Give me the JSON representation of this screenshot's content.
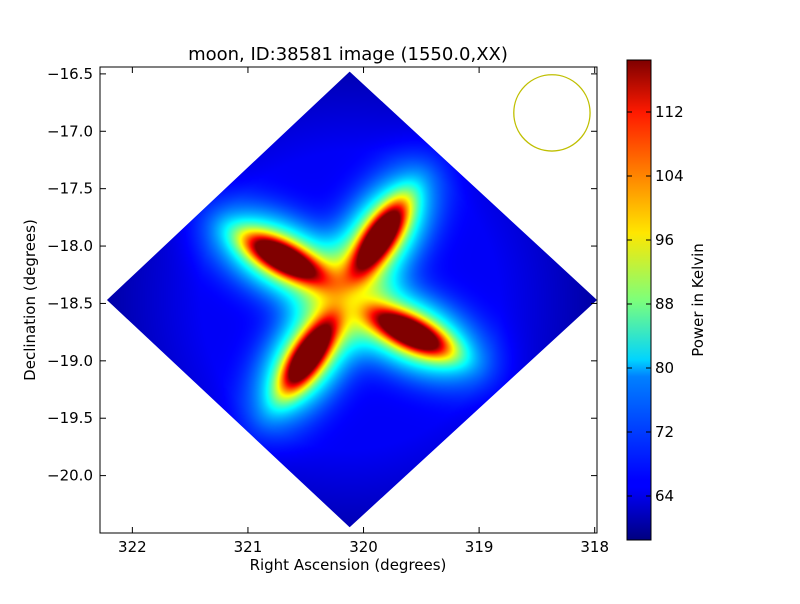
{
  "chart_data": {
    "type": "heatmap",
    "title": "moon, ID:38581 image (1550.0,XX)",
    "xlabel": "Right Ascension (degrees)",
    "ylabel": "Declination (degrees)",
    "xlim": [
      322.28,
      317.98
    ],
    "ylim": [
      -20.5,
      -16.44
    ],
    "x_ticks": [
      322,
      321,
      320,
      319,
      318
    ],
    "x_tick_labels": [
      "322",
      "321",
      "320",
      "319",
      "318"
    ],
    "y_ticks": [
      -16.5,
      -17.0,
      -17.5,
      -18.0,
      -18.5,
      -19.0,
      -19.5,
      -20.0
    ],
    "y_tick_labels": [
      "−16.5",
      "−17.0",
      "−17.5",
      "−18.0",
      "−18.5",
      "−19.0",
      "−19.5",
      "−20.0"
    ],
    "colorbar": {
      "label": "Power in Kelvin",
      "colormap": "jet",
      "range": [
        58.5,
        118.5
      ],
      "ticks": [
        64,
        72,
        80,
        88,
        96,
        104,
        112
      ],
      "tick_labels": [
        "64",
        "72",
        "80",
        "88",
        "96",
        "104",
        "112"
      ]
    },
    "image_extent": {
      "ra_min": 317.98,
      "ra_max": 322.22,
      "dec_min": -20.45,
      "dec_max": -16.48,
      "center_ra": 320.12,
      "center_dec": -18.47
    },
    "background_level": 64,
    "peaks": [
      {
        "name": "upper-right lobe",
        "ra": 319.86,
        "dec": -17.92,
        "value": 117
      },
      {
        "name": "upper-left lobe",
        "ra": 320.7,
        "dec": -18.1,
        "value": 117
      },
      {
        "name": "lower-right lobe",
        "ra": 319.6,
        "dec": -18.75,
        "value": 117
      },
      {
        "name": "lower-left lobe",
        "ra": 320.48,
        "dec": -18.95,
        "value": 117
      }
    ],
    "beam_circle": {
      "ra": 318.37,
      "dec": -16.84,
      "radius_deg": 0.33,
      "color": "#bfbf00"
    },
    "grid": false
  }
}
